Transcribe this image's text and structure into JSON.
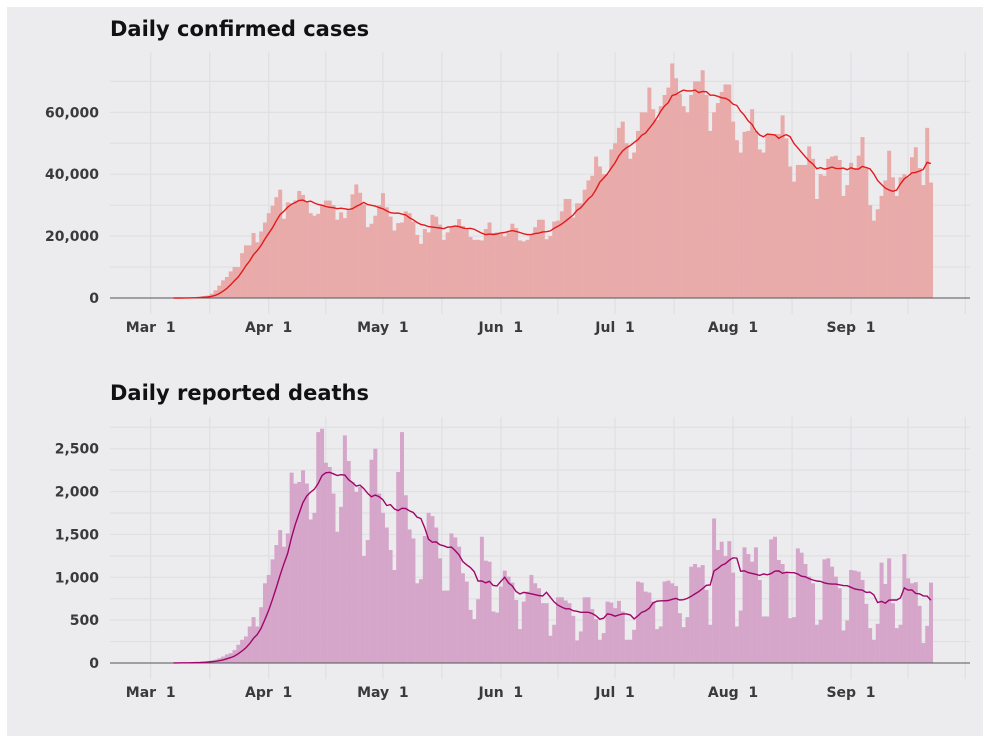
{
  "colors": {
    "background": "#ececee",
    "grid": "#e0e0e3",
    "cases_bar": "#e9aaaa",
    "cases_line": "#e41a1c",
    "deaths_bar": "#d5a6c9",
    "deaths_line": "#a0056a"
  },
  "chart_data": [
    {
      "type": "bar",
      "title": "Daily confirmed cases",
      "xlabel": "",
      "ylabel": "",
      "x_unit": "day",
      "first_day": "Mar 1",
      "x_ticks": [
        "Mar  1",
        "Apr  1",
        "May  1",
        "Jun  1",
        "Jul  1",
        "Aug  1",
        "Sep  1"
      ],
      "y_ticks": [
        "0",
        "20,000",
        "40,000",
        "60,000"
      ],
      "y_tick_values": [
        0,
        20000,
        40000,
        60000
      ],
      "ylim": [
        0,
        79500
      ],
      "grid": true,
      "series": [
        {
          "kind": "bar",
          "values": [
            0,
            0,
            0,
            0,
            0,
            0,
            20,
            30,
            50,
            60,
            100,
            200,
            300,
            400,
            600,
            800,
            1400,
            2500,
            4000,
            5700,
            6800,
            8600,
            10000,
            10000,
            14500,
            17000,
            17000,
            21000,
            18000,
            21500,
            24400,
            27400,
            29800,
            32600,
            35000,
            25600,
            30900,
            30600,
            31500,
            34600,
            33300,
            30900,
            27400,
            26600,
            27200,
            30000,
            31500,
            31500,
            30000,
            25300,
            27700,
            25800,
            28300,
            33500,
            36700,
            34000,
            30300,
            22900,
            24000,
            26600,
            30000,
            33900,
            29300,
            26300,
            21800,
            24200,
            24400,
            28000,
            27400,
            24700,
            20400,
            17500,
            22300,
            21200,
            26900,
            26300,
            23700,
            18800,
            21200,
            23000,
            23000,
            25500,
            23300,
            22000,
            19700,
            18800,
            18800,
            18600,
            22300,
            24400,
            21000,
            21200,
            20700,
            19900,
            21200,
            24000,
            22600,
            18600,
            18300,
            18800,
            20400,
            22900,
            25300,
            25300,
            19000,
            20000,
            24700,
            25000,
            28000,
            32000,
            32000,
            26000,
            30600,
            30600,
            35000,
            38000,
            39500,
            45700,
            42500,
            40000,
            40000,
            48000,
            50000,
            55000,
            57000,
            50000,
            45000,
            47000,
            54000,
            60000,
            60000,
            68000,
            61000,
            57500,
            62000,
            65600,
            68000,
            75800,
            71000,
            66000,
            62000,
            60000,
            65600,
            70000,
            70000,
            73600,
            65600,
            54000,
            60000,
            63000,
            66600,
            69000,
            69000,
            57000,
            51000,
            47000,
            53700,
            54000,
            61000,
            54000,
            48000,
            47000,
            53000,
            53000,
            53000,
            53000,
            59000,
            51600,
            42500,
            37600,
            43000,
            43000,
            43000,
            49000,
            45000,
            32000,
            40000,
            39500,
            45000,
            45700,
            46000,
            44600,
            33000,
            36500,
            43700,
            42000,
            46000,
            52000,
            42000,
            30000,
            25000,
            28700,
            33000,
            38000,
            47600,
            39000,
            33000,
            39000,
            40000,
            39000,
            45500,
            48700,
            42000,
            36500,
            55000,
            37300
          ]
        },
        {
          "kind": "line",
          "rolling_average_days": 7
        }
      ]
    },
    {
      "type": "bar",
      "title": "Daily reported deaths",
      "xlabel": "",
      "ylabel": "",
      "x_unit": "day",
      "first_day": "Mar 1",
      "x_ticks": [
        "Mar  1",
        "Apr  1",
        "May  1",
        "Jun  1",
        "Jul  1",
        "Aug  1",
        "Sep  1"
      ],
      "y_ticks": [
        "0",
        "500",
        "1,000",
        "1,500",
        "2,000",
        "2,500"
      ],
      "y_tick_values": [
        0,
        500,
        1000,
        1500,
        2000,
        2500
      ],
      "ylim": [
        0,
        2870
      ],
      "grid": true,
      "series": [
        {
          "kind": "bar",
          "values": [
            0,
            0,
            1,
            0,
            2,
            1,
            2,
            3,
            4,
            3,
            5,
            7,
            10,
            12,
            16,
            23,
            30,
            40,
            55,
            75,
            100,
            115,
            150,
            213,
            271,
            310,
            426,
            535,
            426,
            651,
            930,
            1027,
            1209,
            1376,
            1550,
            1357,
            1512,
            2221,
            2093,
            2112,
            2248,
            2093,
            1674,
            1752,
            2694,
            2733,
            2337,
            2287,
            1977,
            1531,
            1822,
            2655,
            2357,
            2112,
            1996,
            2054,
            1248,
            1434,
            2372,
            2500,
            1977,
            1752,
            1581,
            1318,
            1085,
            2229,
            2694,
            1957,
            1558,
            1453,
            930,
            977,
            1481,
            1752,
            1713,
            1581,
            1221,
            845,
            845,
            1512,
            1465,
            1357,
            1047,
            950,
            620,
            512,
            744,
            1473,
            1194,
            1182,
            601,
            589,
            891,
            1078,
            1008,
            938,
            736,
            395,
            717,
            833,
            1027,
            930,
            872,
            698,
            698,
            318,
            446,
            767,
            767,
            729,
            698,
            550,
            264,
            368,
            767,
            767,
            628,
            512,
            271,
            349,
            717,
            705,
            640,
            725,
            601,
            271,
            271,
            388,
            950,
            938,
            833,
            822,
            717,
            395,
            426,
            950,
            961,
            930,
            899,
            581,
            419,
            535,
            1124,
            1155,
            1116,
            1143,
            853,
            446,
            1686,
            1318,
            1415,
            1248,
            1422,
            1054,
            426,
            612,
            1349,
            1271,
            1182,
            1349,
            969,
            543,
            543,
            1442,
            1473,
            1202,
            1155,
            1047,
            523,
            535,
            1337,
            1287,
            1155,
            1008,
            930,
            446,
            504,
            1209,
            1221,
            1124,
            1008,
            872,
            380,
            496,
            1085,
            1078,
            1066,
            969,
            690,
            407,
            271,
            457,
            1171,
            922,
            1221,
            698,
            407,
            446,
            1271,
            988,
            930,
            942,
            667,
            233,
            434,
            938
          ]
        },
        {
          "kind": "line",
          "rolling_average_days": 7
        }
      ]
    }
  ]
}
